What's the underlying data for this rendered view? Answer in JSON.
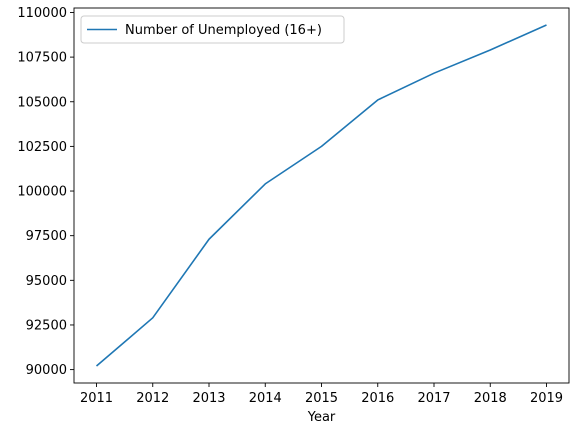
{
  "chart_data": {
    "type": "line",
    "title": "",
    "xlabel": "Year",
    "ylabel": "",
    "x": [
      2011,
      2012,
      2013,
      2014,
      2015,
      2016,
      2017,
      2018,
      2019
    ],
    "series": [
      {
        "name": "Number of Unemployed (16+)",
        "values": [
          90200,
          92900,
          97300,
          100400,
          102500,
          105100,
          106600,
          107900,
          109300
        ],
        "color": "#1f77b4"
      }
    ],
    "xticks": [
      "2011",
      "2012",
      "2013",
      "2014",
      "2015",
      "2016",
      "2017",
      "2018",
      "2019"
    ],
    "yticks": [
      90000,
      92500,
      95000,
      97500,
      100000,
      102500,
      105000,
      107500,
      110000
    ],
    "ytick_labels": [
      "90000",
      "92500",
      "95000",
      "97500",
      "100000",
      "102500",
      "105000",
      "107500",
      "110000"
    ],
    "xlim": [
      2010.6,
      2019.4
    ],
    "ylim": [
      89250,
      110250
    ],
    "grid": false,
    "legend_position": "top-left"
  }
}
